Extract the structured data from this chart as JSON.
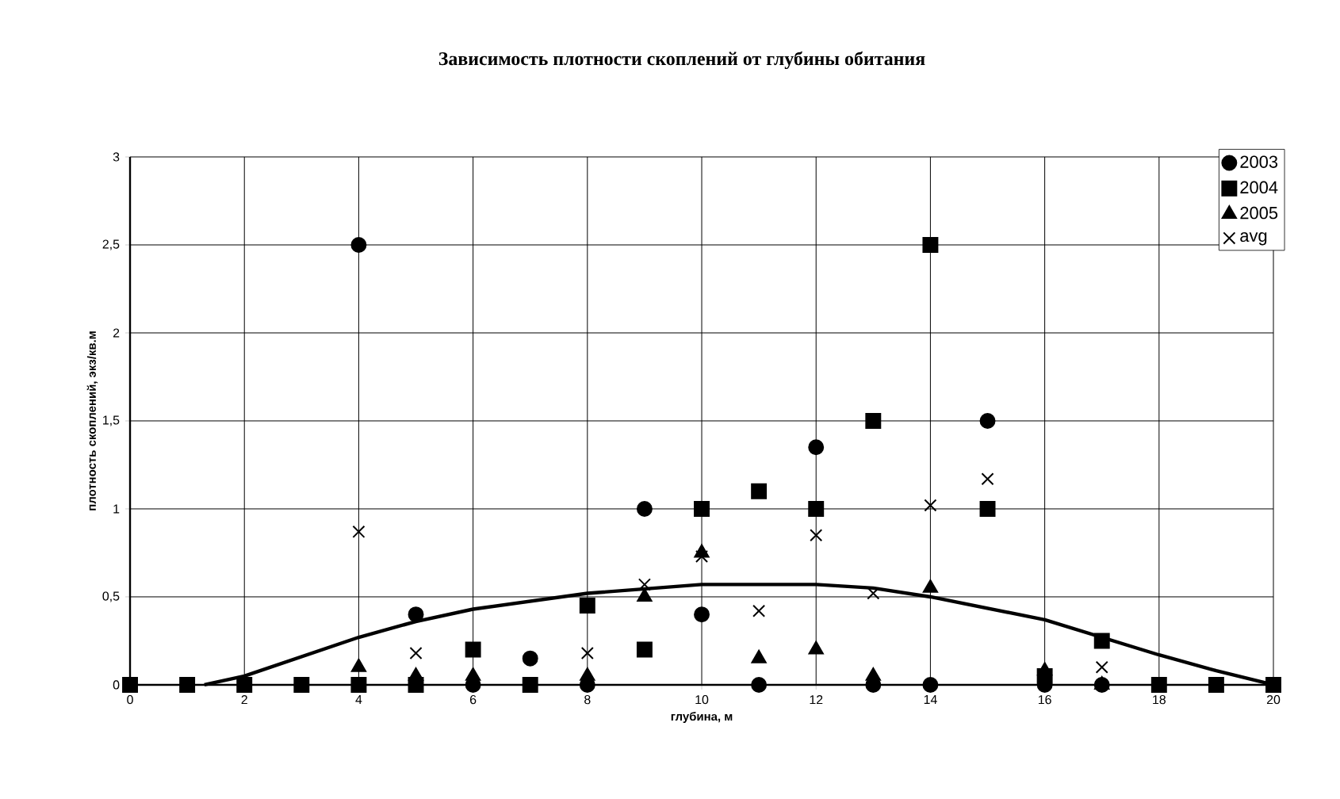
{
  "chart_data": {
    "type": "scatter",
    "title": "Зависимость плотности скоплений от глубины обитания",
    "xlabel": "глубина, м",
    "ylabel": "плотность скоплений, экз/кв.м",
    "xlim": [
      0,
      20
    ],
    "xticks": [
      0,
      2,
      4,
      6,
      8,
      10,
      12,
      14,
      16,
      18,
      20
    ],
    "ylim": [
      0,
      3
    ],
    "yticks": [
      0,
      {
        "value": 0.5,
        "label": "0,5"
      },
      1,
      {
        "value": 1.5,
        "label": "1,5"
      },
      2,
      {
        "value": 2.5,
        "label": "2,5"
      },
      3
    ],
    "grid": true,
    "legend": "top right",
    "series": [
      {
        "name": "2003",
        "color": "#000000",
        "marker": "circle",
        "x": [
          4,
          5,
          6,
          7,
          8,
          9,
          10,
          11,
          12,
          13,
          14,
          15,
          16,
          17
        ],
        "values": [
          2.5,
          0.4,
          0,
          0.15,
          0,
          1.0,
          0.4,
          0,
          1.35,
          0,
          0,
          1.5,
          0,
          0
        ]
      },
      {
        "name": "2004",
        "color": "#000000",
        "marker": "square",
        "x": [
          0,
          1,
          2,
          3,
          4,
          5,
          6,
          7,
          8,
          9,
          10,
          11,
          12,
          13,
          14,
          15,
          16,
          17,
          18,
          19,
          20
        ],
        "values": [
          0,
          0,
          0,
          0,
          0,
          0,
          0.2,
          0,
          0.45,
          0.2,
          1.0,
          1.1,
          1.0,
          1.5,
          2.5,
          1.0,
          0.05,
          0.25,
          0,
          0,
          0
        ]
      },
      {
        "name": "2005",
        "color": "#000000",
        "marker": "triangle",
        "x": [
          4,
          5,
          6,
          8,
          9,
          10,
          11,
          12,
          13,
          14,
          16,
          17
        ],
        "values": [
          0.1,
          0.05,
          0.05,
          0.05,
          0.5,
          0.75,
          0.15,
          0.2,
          0.05,
          0.55,
          0.08,
          0
        ]
      },
      {
        "name": "avg",
        "color": "#000000",
        "marker": "cross",
        "x": [
          4,
          5,
          8,
          9,
          10,
          11,
          12,
          13,
          14,
          15,
          17
        ],
        "values": [
          0.87,
          0.18,
          0.18,
          0.57,
          0.73,
          0.42,
          0.85,
          0.52,
          1.02,
          1.17,
          0.1
        ]
      },
      {
        "type": "line",
        "color": "#000000",
        "marker": "none",
        "x": [
          1.3,
          2,
          4,
          5,
          6,
          8,
          10,
          12,
          13,
          14,
          16,
          17,
          18,
          19,
          20
        ],
        "values": [
          0,
          0.05,
          0.27,
          0.36,
          0.43,
          0.52,
          0.57,
          0.57,
          0.55,
          0.5,
          0.37,
          0.27,
          0.17,
          0.08,
          0
        ]
      }
    ]
  }
}
